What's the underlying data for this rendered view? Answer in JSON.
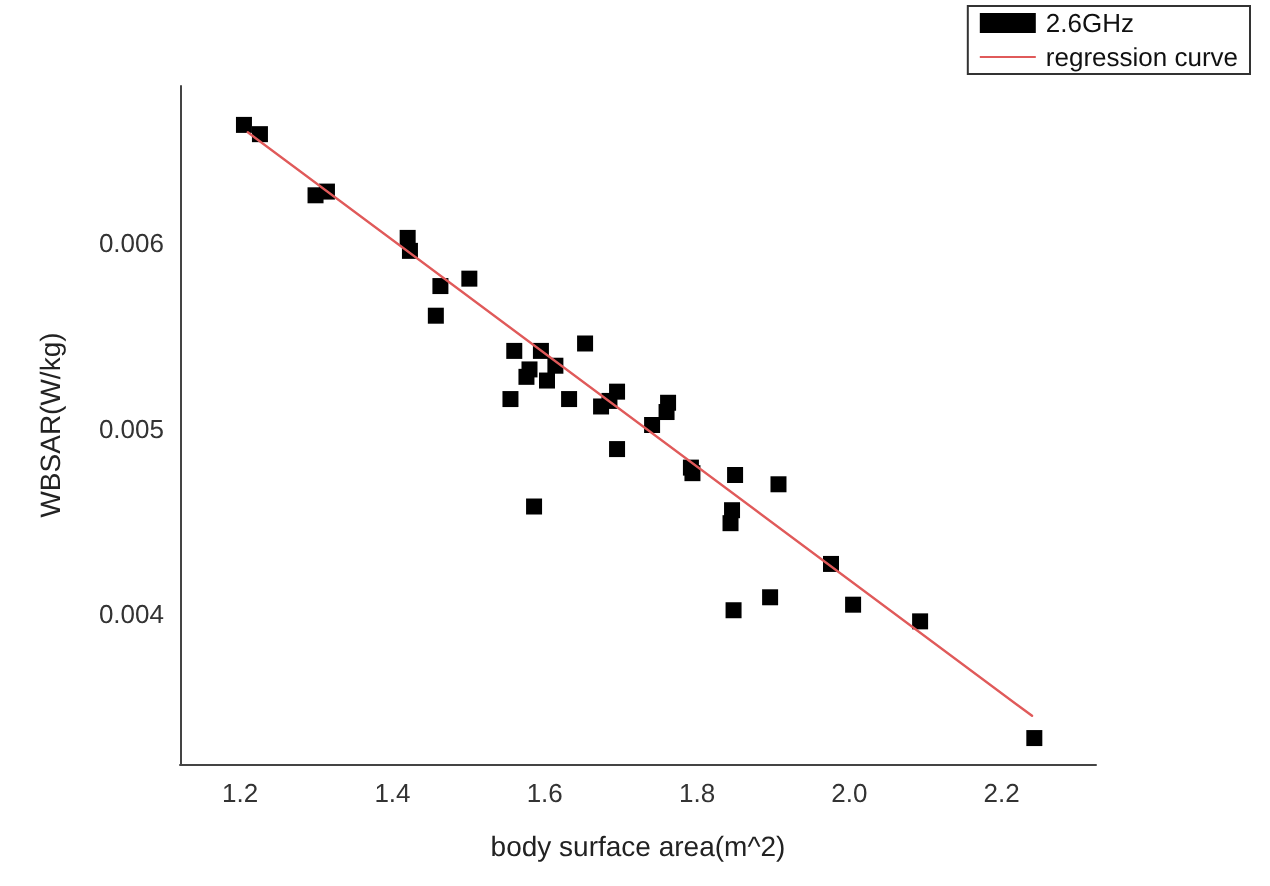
{
  "chart_data": {
    "type": "scatter",
    "xlabel": "body surface area(m^2)",
    "ylabel": "WBSAR(W/kg)",
    "xlim": [
      1.121,
      2.324
    ],
    "xticks": [
      1.2,
      1.4,
      1.6,
      1.8,
      {
        "value": 2.0,
        "label": "2.0"
      },
      2.2
    ],
    "ylim": [
      0.00319,
      0.00685
    ],
    "yticks": [
      0.004,
      0.005,
      0.006
    ],
    "grid": false,
    "legend": "top right",
    "marker": "square",
    "series": [
      {
        "name": "2.6GHz",
        "color": "#000000",
        "x": [
          1.205,
          1.226,
          1.299,
          1.314,
          1.42,
          1.423,
          1.463,
          1.457,
          1.501,
          1.56,
          1.555,
          1.58,
          1.576,
          1.595,
          1.614,
          1.603,
          1.653,
          1.632,
          1.586,
          1.674,
          1.685,
          1.695,
          1.695,
          1.741,
          1.762,
          1.76,
          1.792,
          1.794,
          1.85,
          1.846,
          1.844,
          1.907,
          1.848,
          1.896,
          1.976,
          2.005,
          2.093,
          2.243
        ],
        "values": [
          0.00664,
          0.00659,
          0.00626,
          0.00628,
          0.00603,
          0.00596,
          0.00577,
          0.00561,
          0.00581,
          0.00542,
          0.00516,
          0.00532,
          0.00528,
          0.00542,
          0.00534,
          0.00526,
          0.00546,
          0.00516,
          0.00458,
          0.00512,
          0.00515,
          0.0052,
          0.00489,
          0.00502,
          0.00514,
          0.00509,
          0.00479,
          0.00476,
          0.00475,
          0.00456,
          0.00449,
          0.0047,
          0.00402,
          0.00409,
          0.00427,
          0.00405,
          0.00396,
          0.00333
        ]
      },
      {
        "name": "regression curve",
        "type": "line",
        "color": "#e05a5a",
        "line_style": "solid",
        "marker": "none",
        "x": [
          1.21,
          2.24
        ],
        "values": [
          0.0066,
          0.00345
        ]
      }
    ]
  }
}
